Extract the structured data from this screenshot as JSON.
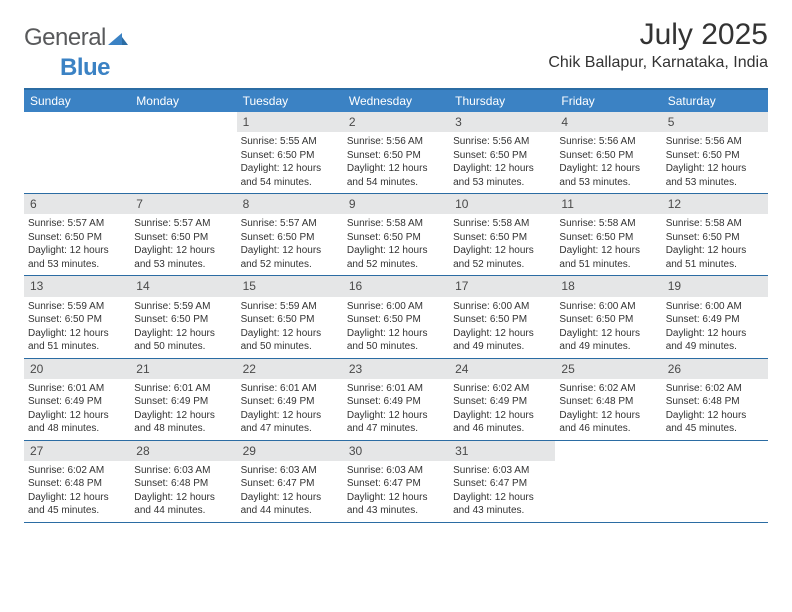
{
  "logo": {
    "text1": "General",
    "text2": "Blue"
  },
  "title": "July 2025",
  "location": "Chik Ballapur, Karnataka, India",
  "colors": {
    "header_bg": "#3b82c4",
    "header_border": "#2b6ca3",
    "daynum_bg": "#e5e6e7",
    "text": "#333333",
    "logo_gray": "#58595b"
  },
  "day_names": [
    "Sunday",
    "Monday",
    "Tuesday",
    "Wednesday",
    "Thursday",
    "Friday",
    "Saturday"
  ],
  "weeks": [
    [
      null,
      null,
      {
        "n": "1",
        "sr": "5:55 AM",
        "ss": "6:50 PM",
        "dl": "12 hours and 54 minutes."
      },
      {
        "n": "2",
        "sr": "5:56 AM",
        "ss": "6:50 PM",
        "dl": "12 hours and 54 minutes."
      },
      {
        "n": "3",
        "sr": "5:56 AM",
        "ss": "6:50 PM",
        "dl": "12 hours and 53 minutes."
      },
      {
        "n": "4",
        "sr": "5:56 AM",
        "ss": "6:50 PM",
        "dl": "12 hours and 53 minutes."
      },
      {
        "n": "5",
        "sr": "5:56 AM",
        "ss": "6:50 PM",
        "dl": "12 hours and 53 minutes."
      }
    ],
    [
      {
        "n": "6",
        "sr": "5:57 AM",
        "ss": "6:50 PM",
        "dl": "12 hours and 53 minutes."
      },
      {
        "n": "7",
        "sr": "5:57 AM",
        "ss": "6:50 PM",
        "dl": "12 hours and 53 minutes."
      },
      {
        "n": "8",
        "sr": "5:57 AM",
        "ss": "6:50 PM",
        "dl": "12 hours and 52 minutes."
      },
      {
        "n": "9",
        "sr": "5:58 AM",
        "ss": "6:50 PM",
        "dl": "12 hours and 52 minutes."
      },
      {
        "n": "10",
        "sr": "5:58 AM",
        "ss": "6:50 PM",
        "dl": "12 hours and 52 minutes."
      },
      {
        "n": "11",
        "sr": "5:58 AM",
        "ss": "6:50 PM",
        "dl": "12 hours and 51 minutes."
      },
      {
        "n": "12",
        "sr": "5:58 AM",
        "ss": "6:50 PM",
        "dl": "12 hours and 51 minutes."
      }
    ],
    [
      {
        "n": "13",
        "sr": "5:59 AM",
        "ss": "6:50 PM",
        "dl": "12 hours and 51 minutes."
      },
      {
        "n": "14",
        "sr": "5:59 AM",
        "ss": "6:50 PM",
        "dl": "12 hours and 50 minutes."
      },
      {
        "n": "15",
        "sr": "5:59 AM",
        "ss": "6:50 PM",
        "dl": "12 hours and 50 minutes."
      },
      {
        "n": "16",
        "sr": "6:00 AM",
        "ss": "6:50 PM",
        "dl": "12 hours and 50 minutes."
      },
      {
        "n": "17",
        "sr": "6:00 AM",
        "ss": "6:50 PM",
        "dl": "12 hours and 49 minutes."
      },
      {
        "n": "18",
        "sr": "6:00 AM",
        "ss": "6:50 PM",
        "dl": "12 hours and 49 minutes."
      },
      {
        "n": "19",
        "sr": "6:00 AM",
        "ss": "6:49 PM",
        "dl": "12 hours and 49 minutes."
      }
    ],
    [
      {
        "n": "20",
        "sr": "6:01 AM",
        "ss": "6:49 PM",
        "dl": "12 hours and 48 minutes."
      },
      {
        "n": "21",
        "sr": "6:01 AM",
        "ss": "6:49 PM",
        "dl": "12 hours and 48 minutes."
      },
      {
        "n": "22",
        "sr": "6:01 AM",
        "ss": "6:49 PM",
        "dl": "12 hours and 47 minutes."
      },
      {
        "n": "23",
        "sr": "6:01 AM",
        "ss": "6:49 PM",
        "dl": "12 hours and 47 minutes."
      },
      {
        "n": "24",
        "sr": "6:02 AM",
        "ss": "6:49 PM",
        "dl": "12 hours and 46 minutes."
      },
      {
        "n": "25",
        "sr": "6:02 AM",
        "ss": "6:48 PM",
        "dl": "12 hours and 46 minutes."
      },
      {
        "n": "26",
        "sr": "6:02 AM",
        "ss": "6:48 PM",
        "dl": "12 hours and 45 minutes."
      }
    ],
    [
      {
        "n": "27",
        "sr": "6:02 AM",
        "ss": "6:48 PM",
        "dl": "12 hours and 45 minutes."
      },
      {
        "n": "28",
        "sr": "6:03 AM",
        "ss": "6:48 PM",
        "dl": "12 hours and 44 minutes."
      },
      {
        "n": "29",
        "sr": "6:03 AM",
        "ss": "6:47 PM",
        "dl": "12 hours and 44 minutes."
      },
      {
        "n": "30",
        "sr": "6:03 AM",
        "ss": "6:47 PM",
        "dl": "12 hours and 43 minutes."
      },
      {
        "n": "31",
        "sr": "6:03 AM",
        "ss": "6:47 PM",
        "dl": "12 hours and 43 minutes."
      },
      null,
      null
    ]
  ],
  "labels": {
    "sunrise": "Sunrise: ",
    "sunset": "Sunset: ",
    "daylight": "Daylight: "
  }
}
